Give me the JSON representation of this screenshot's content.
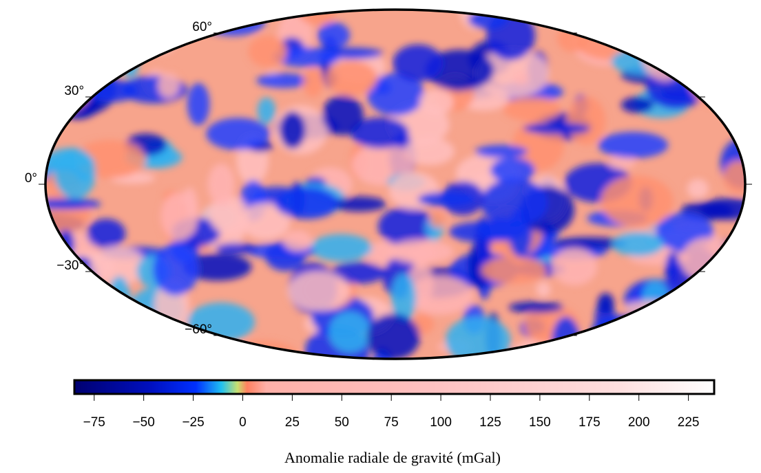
{
  "map": {
    "projection": "hammer",
    "lat_labels": [
      {
        "value": 60,
        "label": "60°"
      },
      {
        "value": 30,
        "label": "30°"
      },
      {
        "value": 0,
        "label": "0°"
      },
      {
        "value": -30,
        "label": "−30°"
      },
      {
        "value": -60,
        "label": "−60°"
      }
    ]
  },
  "colorbar": {
    "label": "Anomalie radiale de gravité (mGal)",
    "lim": [
      -85,
      238
    ],
    "ticks": [
      {
        "value": -75,
        "label": "−75"
      },
      {
        "value": -50,
        "label": "−50"
      },
      {
        "value": -25,
        "label": "−25"
      },
      0,
      25,
      50,
      75,
      100,
      125,
      150,
      175,
      200,
      225
    ]
  }
}
